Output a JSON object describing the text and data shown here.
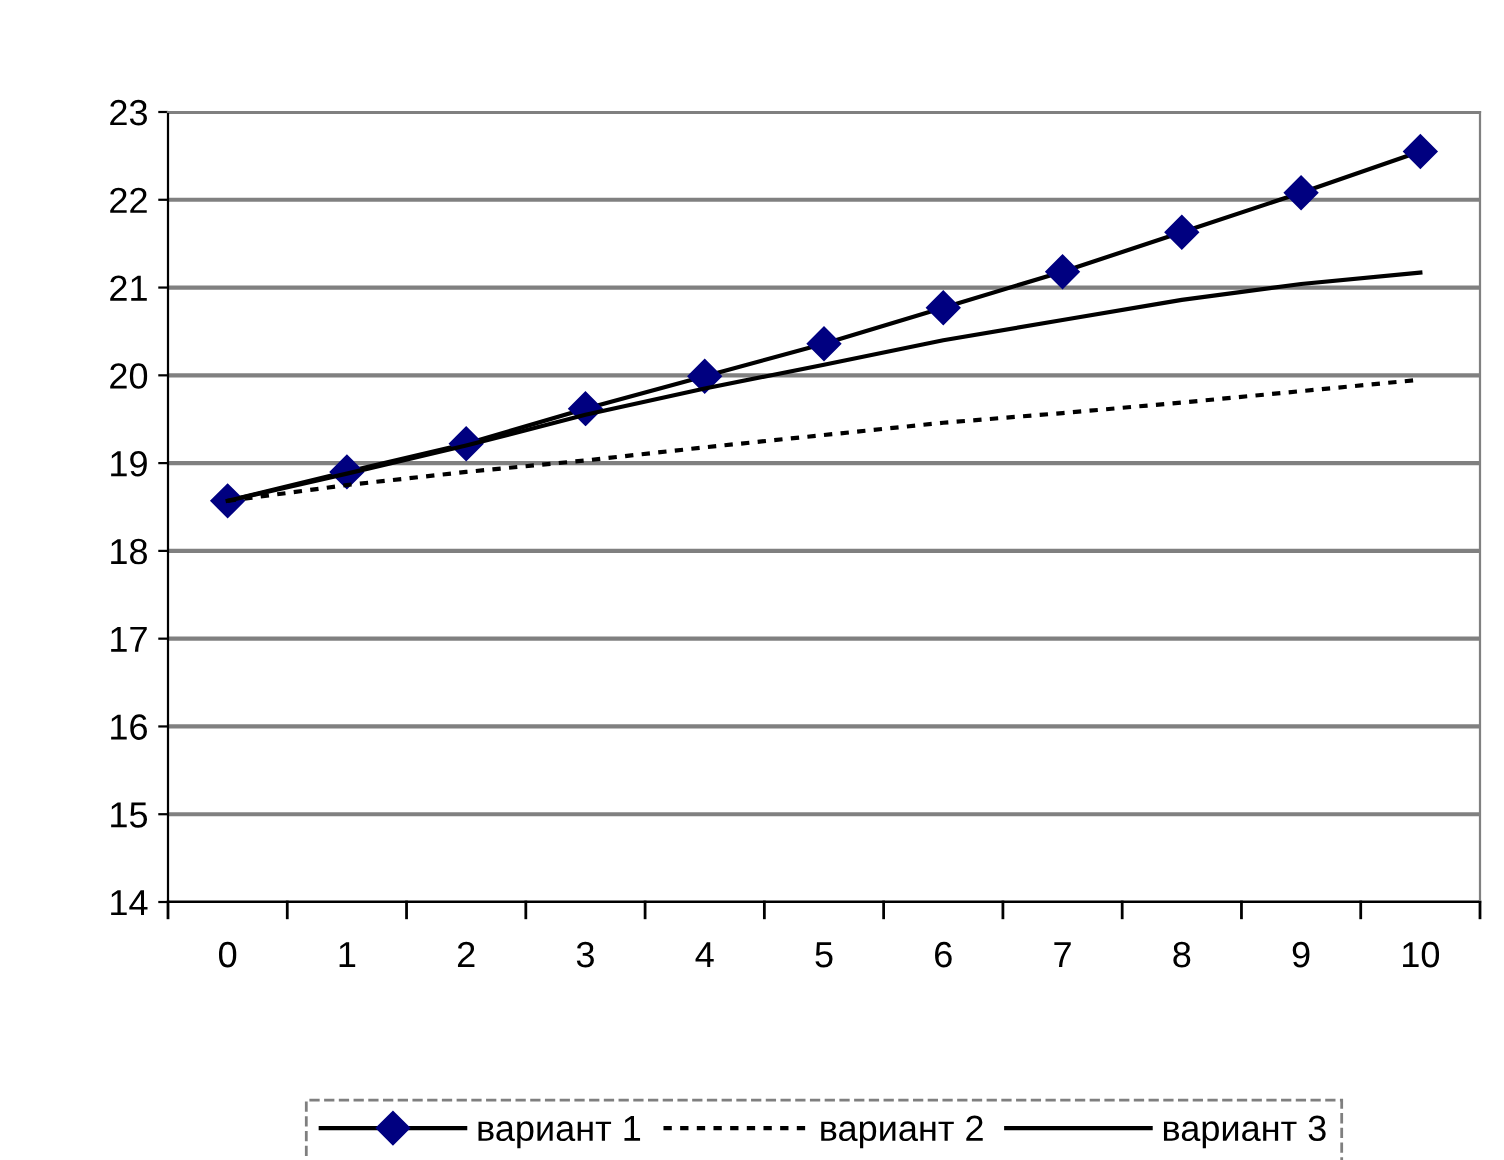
{
  "chart_data": {
    "type": "line",
    "categories": [
      "0",
      "1",
      "2",
      "3",
      "4",
      "5",
      "6",
      "7",
      "8",
      "9",
      "10"
    ],
    "series": [
      {
        "name": "вариант 1",
        "color": "#000080",
        "values": [
          18.57,
          18.9,
          19.22,
          19.62,
          19.99,
          20.36,
          20.77,
          21.18,
          21.63,
          22.08,
          22.55
        ],
        "marker": "diamond",
        "line_style": "solid"
      },
      {
        "name": "вариант 2",
        "color": "#000000",
        "values": [
          18.57,
          18.75,
          18.9,
          19.03,
          19.18,
          19.32,
          19.46,
          19.57,
          19.69,
          19.82,
          19.95
        ],
        "marker": "none",
        "line_style": "dotted"
      },
      {
        "name": "вариант 3",
        "color": "#000000",
        "values": [
          18.57,
          18.88,
          19.2,
          19.55,
          19.85,
          20.12,
          20.4,
          20.63,
          20.86,
          21.04,
          21.17
        ],
        "marker": "none",
        "line_style": "solid"
      }
    ],
    "ylim": [
      14,
      23
    ],
    "yticks": [
      14,
      15,
      16,
      17,
      18,
      19,
      20,
      21,
      22,
      23
    ],
    "grid": "y",
    "legend": "bottom"
  }
}
